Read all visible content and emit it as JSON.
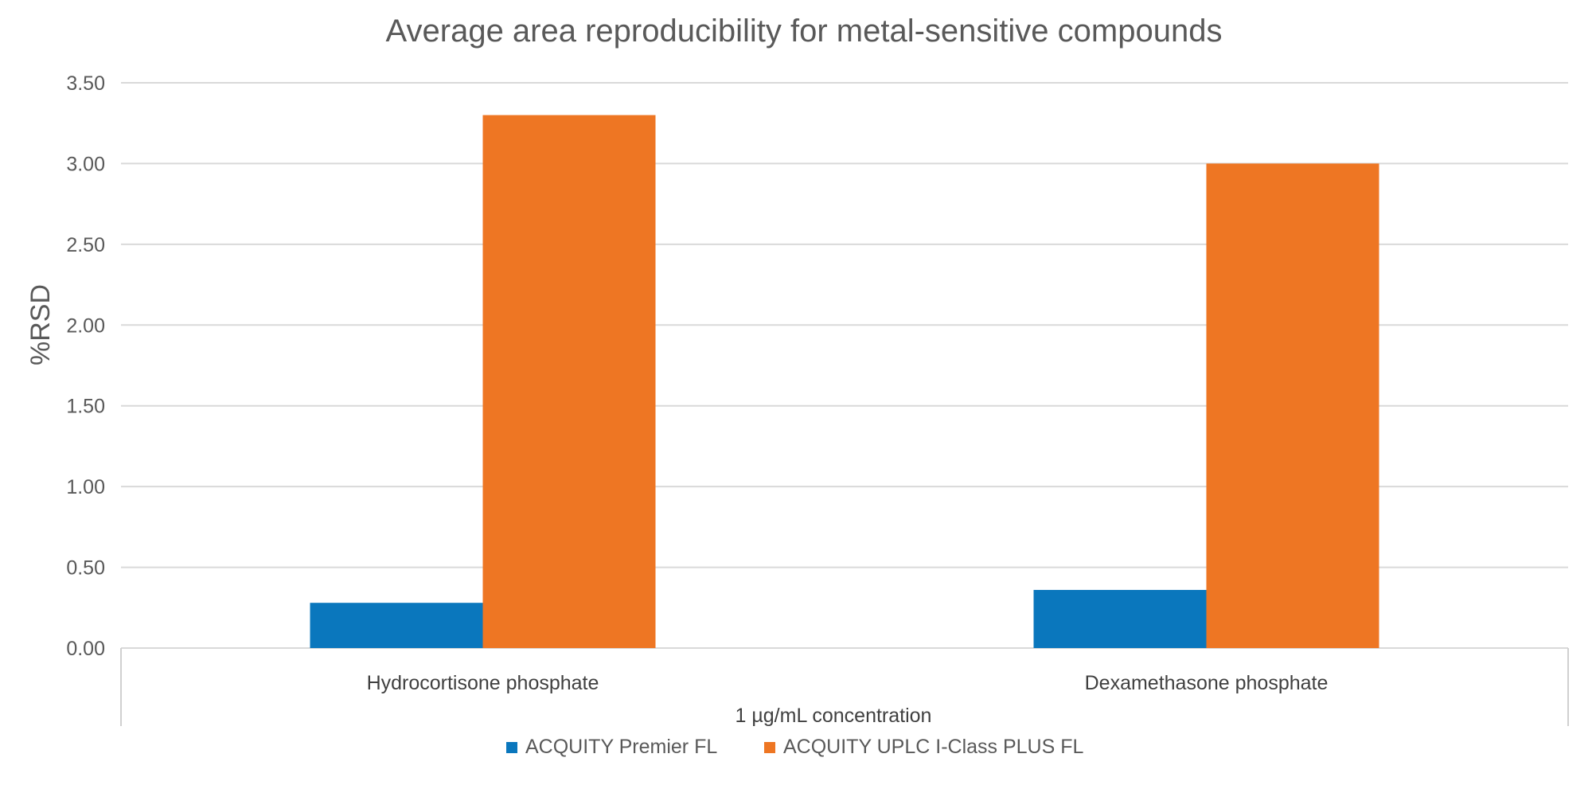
{
  "chart_data": {
    "type": "bar",
    "title": "Average area reproducibility for metal-sensitive compounds",
    "ylabel": "%RSD",
    "xlabel": "1 µg/mL concentration",
    "categories": [
      "Hydrocortisone phosphate",
      "Dexamethasone phosphate"
    ],
    "series": [
      {
        "name": "ACQUITY Premier FL",
        "color": "#0a77bd",
        "values": [
          0.28,
          0.36
        ]
      },
      {
        "name": "ACQUITY UPLC I-Class PLUS FL",
        "color": "#ee7623",
        "values": [
          3.3,
          3.0
        ]
      }
    ],
    "ylim": [
      0,
      3.5
    ],
    "yticks": [
      "0.00",
      "0.50",
      "1.00",
      "1.50",
      "2.00",
      "2.50",
      "3.00",
      "3.50"
    ],
    "grid": true,
    "legend_position": "bottom-center"
  }
}
